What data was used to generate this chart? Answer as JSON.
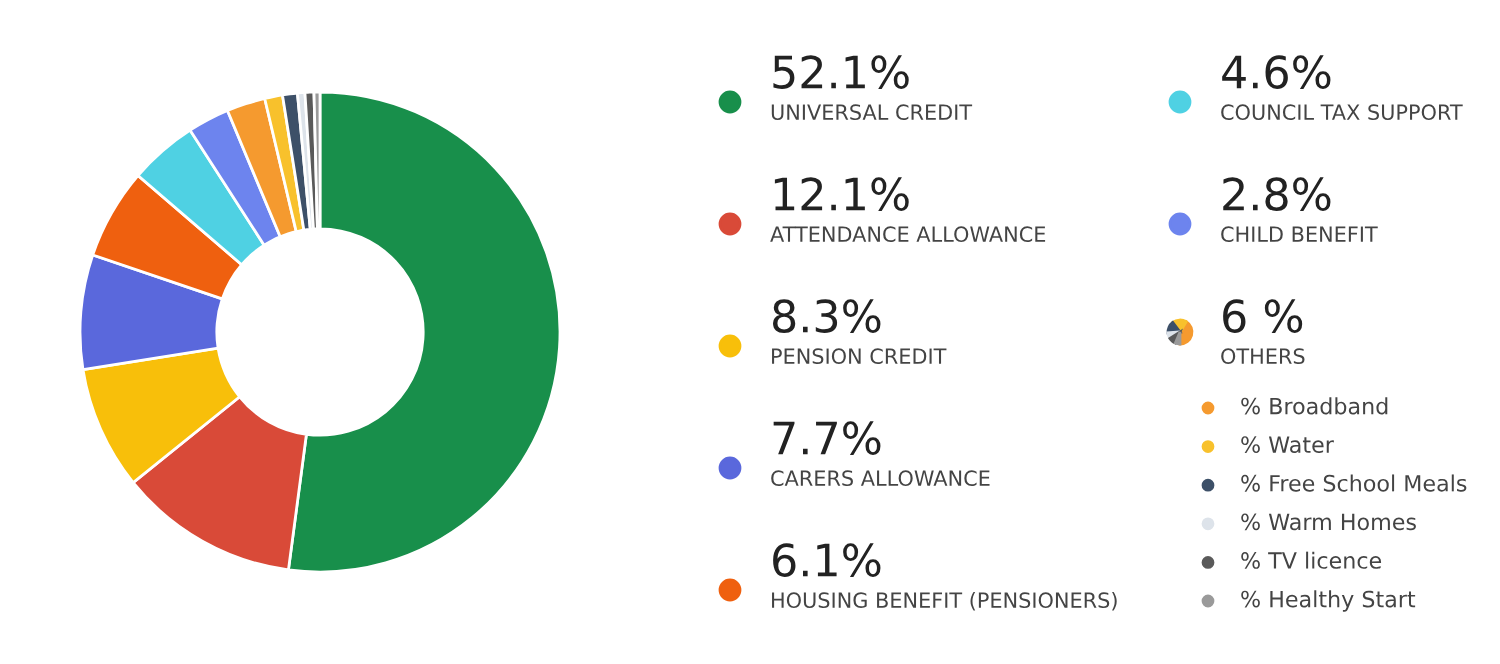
{
  "chart_data": {
    "type": "donut",
    "categories": [
      "UNIVERSAL CREDIT",
      "ATTENDANCE ALLOWANCE",
      "PENSION CREDIT",
      "CARERS ALLOWANCE",
      "HOUSING BENEFIT (PENSIONERS)",
      "COUNCIL TAX SUPPORT",
      "CHILD BENEFIT",
      "% Broadband",
      "% Water",
      "% Free School Meals",
      "% Warm Homes",
      "% TV licence",
      "% Healthy Start"
    ],
    "values": [
      52.1,
      12.1,
      8.3,
      7.7,
      6.1,
      4.6,
      2.8,
      2.6,
      1.2,
      1.0,
      0.5,
      0.6,
      0.4
    ],
    "value_labels": [
      "52.1%",
      "12.1%",
      "8.3%",
      "7.7%",
      "6.1%",
      "4.6%",
      "2.8%",
      null,
      null,
      null,
      null,
      null,
      null
    ],
    "colors": [
      "#188f4b",
      "#d94a38",
      "#f8bf0a",
      "#5a68dc",
      "#ef600f",
      "#4fd1e3",
      "#6d84ee",
      "#f59a2f",
      "#f8c12c",
      "#3d5068",
      "#dde3ea",
      "#5a5a5a",
      "#9a9a9a"
    ],
    "annotations": [
      "6 %",
      "OTHERS"
    ],
    "legend": "right"
  }
}
